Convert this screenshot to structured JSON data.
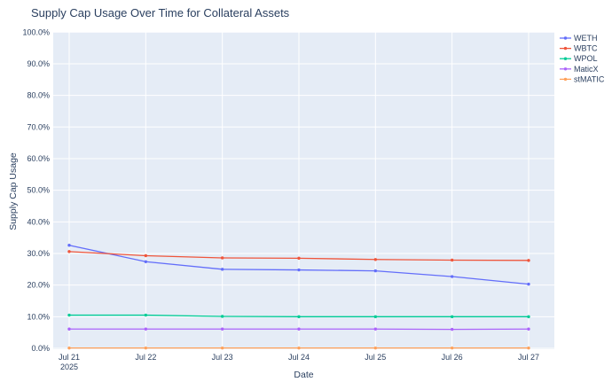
{
  "title": "Supply Cap Usage Over Time for Collateral Assets",
  "chart_data": {
    "type": "line",
    "title": "Supply Cap Usage Over Time for Collateral Assets",
    "xlabel": "Date",
    "ylabel": "Supply Cap Usage",
    "x": [
      "Jul 21",
      "Jul 22",
      "Jul 23",
      "Jul 24",
      "Jul 25",
      "Jul 26",
      "Jul 27"
    ],
    "x_sub_label": {
      "index": 0,
      "text": "2025"
    },
    "ylim": [
      0,
      100
    ],
    "ytick_step": 10,
    "ytick_labels": [
      "0.0%",
      "10.0%",
      "20.0%",
      "30.0%",
      "40.0%",
      "50.0%",
      "60.0%",
      "70.0%",
      "80.0%",
      "90.0%",
      "100.0%"
    ],
    "grid": true,
    "legend_position": "top-right",
    "series": [
      {
        "name": "WETH",
        "color": "#636EFA",
        "values": [
          32.6,
          27.4,
          25.0,
          24.8,
          24.5,
          22.7,
          20.3
        ]
      },
      {
        "name": "WBTC",
        "color": "#EF553B",
        "values": [
          30.6,
          29.3,
          28.6,
          28.5,
          28.1,
          27.9,
          27.8
        ]
      },
      {
        "name": "WPOL",
        "color": "#00CC96",
        "values": [
          10.5,
          10.5,
          10.1,
          10.0,
          10.0,
          10.0,
          10.0
        ]
      },
      {
        "name": "MaticX",
        "color": "#AB63FA",
        "values": [
          6.1,
          6.1,
          6.1,
          6.1,
          6.1,
          6.0,
          6.1
        ]
      },
      {
        "name": "stMATIC",
        "color": "#FFA15A",
        "values": [
          0.1,
          0.1,
          0.1,
          0.1,
          0.1,
          0.1,
          0.1
        ]
      }
    ]
  },
  "colors": {
    "plot_background": "#E5ECF6",
    "paper_background": "#FFFFFF",
    "grid": "#FFFFFF",
    "text": "#2A3F5F"
  }
}
